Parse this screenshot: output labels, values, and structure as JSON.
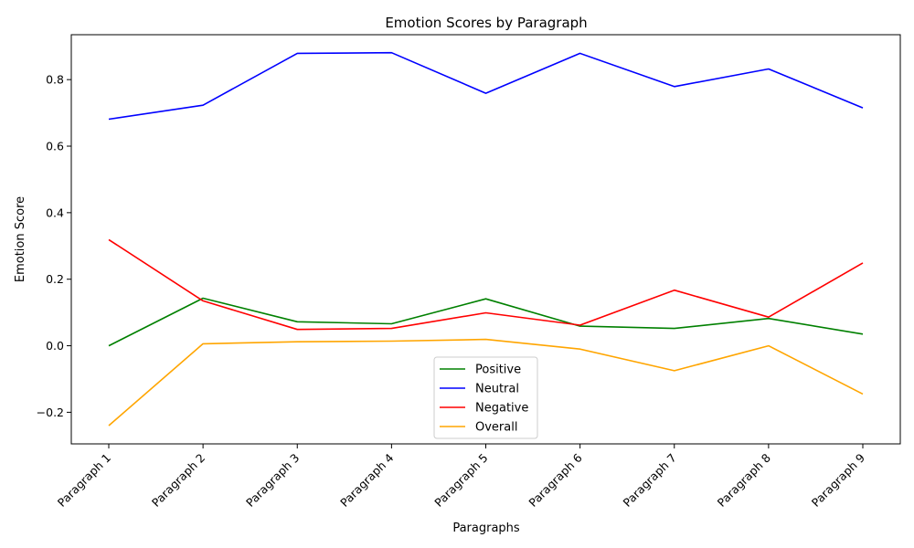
{
  "chart_data": {
    "type": "line",
    "title": "Emotion Scores by Paragraph",
    "xlabel": "Paragraphs",
    "ylabel": "Emotion Score",
    "categories": [
      "Paragraph 1",
      "Paragraph 2",
      "Paragraph 3",
      "Paragraph 4",
      "Paragraph 5",
      "Paragraph 6",
      "Paragraph 7",
      "Paragraph 8",
      "Paragraph 9"
    ],
    "ylim": [
      -0.295,
      0.935
    ],
    "yticks": [
      -0.2,
      0.0,
      0.2,
      0.4,
      0.6,
      0.8
    ],
    "ytick_labels": [
      "−0.2",
      "0.0",
      "0.2",
      "0.4",
      "0.6",
      "0.8"
    ],
    "grid": false,
    "legend_position": "lower-center",
    "series": [
      {
        "name": "Positive",
        "color": "#008000",
        "values": [
          0.0,
          0.143,
          0.072,
          0.066,
          0.141,
          0.059,
          0.052,
          0.082,
          0.035
        ]
      },
      {
        "name": "Neutral",
        "color": "#0000ff",
        "values": [
          0.681,
          0.723,
          0.879,
          0.881,
          0.759,
          0.879,
          0.779,
          0.832,
          0.715
        ]
      },
      {
        "name": "Negative",
        "color": "#ff0000",
        "values": [
          0.319,
          0.135,
          0.049,
          0.052,
          0.099,
          0.062,
          0.167,
          0.086,
          0.249
        ]
      },
      {
        "name": "Overall",
        "color": "#ffa500",
        "values": [
          -0.24,
          0.006,
          0.012,
          0.014,
          0.019,
          -0.01,
          -0.075,
          0.0,
          -0.145
        ]
      }
    ]
  }
}
